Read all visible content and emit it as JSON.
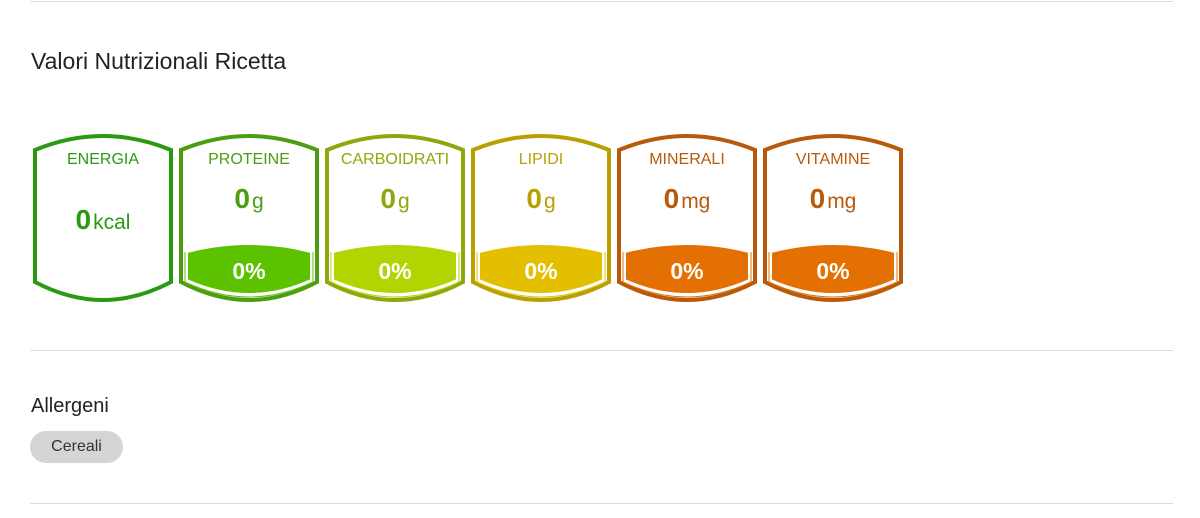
{
  "title": "Valori Nutrizionali Ricetta",
  "nutrients": [
    {
      "label": "ENERGIA",
      "value": "0",
      "unit": "kcal",
      "percent": null,
      "stroke": "#2a9a12",
      "fill": null
    },
    {
      "label": "PROTEINE",
      "value": "0",
      "unit": "g",
      "percent": "0%",
      "stroke": "#4c9e10",
      "fill": "#5cc200"
    },
    {
      "label": "CARBOIDRATI",
      "value": "0",
      "unit": "g",
      "percent": "0%",
      "stroke": "#8ea80c",
      "fill": "#b2d400"
    },
    {
      "label": "LIPIDI",
      "value": "0",
      "unit": "g",
      "percent": "0%",
      "stroke": "#b9a000",
      "fill": "#e4bf00"
    },
    {
      "label": "MINERALI",
      "value": "0",
      "unit": "mg",
      "percent": "0%",
      "stroke": "#b85a0a",
      "fill": "#e37000"
    },
    {
      "label": "VITAMINE",
      "value": "0",
      "unit": "mg",
      "percent": "0%",
      "stroke": "#b85a0a",
      "fill": "#e37000"
    }
  ],
  "allergens": {
    "title": "Allergeni",
    "items": [
      "Cereali"
    ]
  }
}
